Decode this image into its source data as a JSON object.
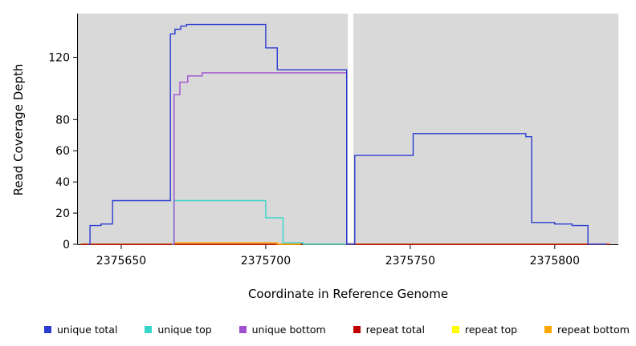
{
  "figure": {
    "background": "#FFFFFF",
    "plot_background": "#D9D9D9",
    "axis_color": "#000000"
  },
  "chart_data": {
    "type": "line",
    "subtype": "step-coverage-plot",
    "title": "",
    "xlabel": "Coordinate in Reference Genome",
    "ylabel": "Read Coverage Depth",
    "xlim": [
      2375635,
      2375822
    ],
    "ylim": [
      0,
      148
    ],
    "x_ticks": [
      2375650,
      2375700,
      2375750,
      2375800
    ],
    "y_ticks": [
      0,
      20,
      40,
      60,
      80,
      120
    ],
    "grid": false,
    "legend_position": "bottom",
    "plot_bg": "#D9D9D9",
    "no_data_gap": {
      "from": 2375728.4,
      "to": 2375730.3
    },
    "draw_order": [
      "repeat top",
      "repeat total",
      "repeat bottom",
      "unique top",
      "unique bottom",
      "unique total"
    ],
    "series": [
      {
        "name": "unique total",
        "color": "#2B3BD0",
        "x_end": 2375818,
        "points": [
          [
            2375638.6,
            0
          ],
          [
            2375639.2,
            12
          ],
          [
            2375643,
            13
          ],
          [
            2375647,
            28
          ],
          [
            2375667,
            135
          ],
          [
            2375668.6,
            138
          ],
          [
            2375670.6,
            140
          ],
          [
            2375672.6,
            141
          ],
          [
            2375700,
            126
          ],
          [
            2375704,
            112
          ],
          [
            2375728,
            0
          ],
          [
            2375730.8,
            57
          ],
          [
            2375751,
            71
          ],
          [
            2375790,
            69
          ],
          [
            2375792,
            14
          ],
          [
            2375800,
            13
          ],
          [
            2375806,
            12
          ],
          [
            2375811.5,
            0
          ]
        ]
      },
      {
        "name": "unique top",
        "color": "#35D5CC",
        "x_end": 2375728,
        "points": [
          [
            2375667.6,
            0
          ],
          [
            2375668.2,
            28
          ],
          [
            2375700,
            17
          ],
          [
            2375706,
            1
          ],
          [
            2375713,
            0
          ]
        ]
      },
      {
        "name": "unique bottom",
        "color": "#A050D0",
        "x_end": 2375728.2,
        "points": [
          [
            2375667.8,
            0
          ],
          [
            2375668.3,
            96
          ],
          [
            2375670.3,
            104
          ],
          [
            2375673,
            108
          ],
          [
            2375678,
            110
          ],
          [
            2375728,
            0
          ]
        ]
      },
      {
        "name": "repeat total",
        "color": "#C00000",
        "x_end": 2375819,
        "points": [
          [
            2375636,
            0
          ]
        ]
      },
      {
        "name": "repeat top",
        "color": "#FFFF00",
        "x_end": 2375819,
        "points": [
          [
            2375636,
            0
          ]
        ]
      },
      {
        "name": "repeat bottom",
        "color": "#FFA500",
        "x_end": 2375712,
        "points": [
          [
            2375667.8,
            0
          ],
          [
            2375668.3,
            1
          ],
          [
            2375704,
            0
          ]
        ]
      }
    ]
  }
}
